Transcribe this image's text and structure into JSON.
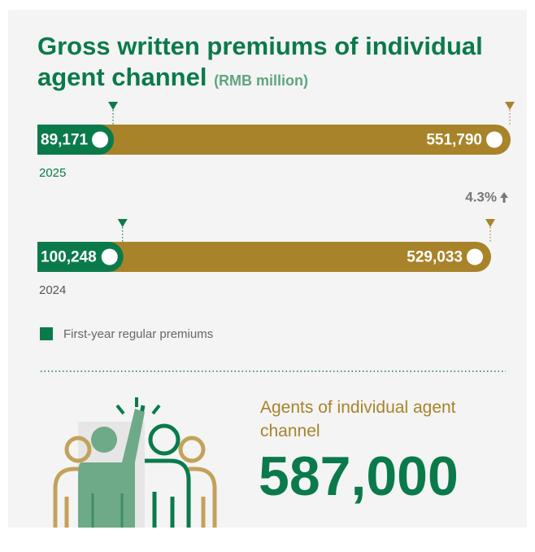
{
  "chart_data": {
    "type": "bar",
    "title": "Gross written premiums of individual agent channel",
    "unit": "(RMB million)",
    "categories": [
      "2025",
      "2024"
    ],
    "series": [
      {
        "name": "First-year regular premiums",
        "color": "#0b7a4b",
        "values": [
          89171,
          100248
        ],
        "value_labels": [
          "89,171",
          "100,248"
        ]
      },
      {
        "color": "#a8832a",
        "values": [
          551790,
          529033
        ],
        "value_labels": [
          "551,790",
          "529,033"
        ]
      }
    ],
    "annotation": "4.3%"
  },
  "agents": {
    "label": "Agents of individual agent channel",
    "value": "587,000"
  }
}
